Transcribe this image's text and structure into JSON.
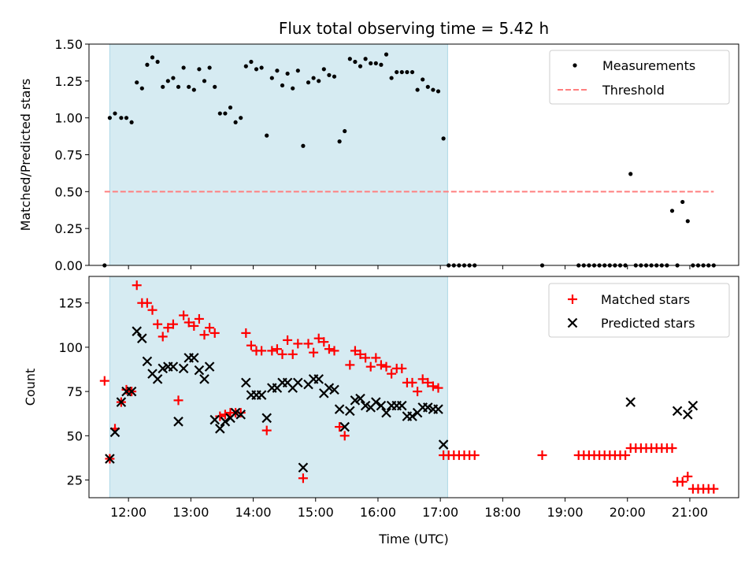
{
  "chart_data": [
    {
      "type": "scatter",
      "title": "Flux total observing time = 5.42 h",
      "xlabel": "",
      "ylabel": "Matched/Predicted stars",
      "xlim": [
        "11:22",
        "21:47"
      ],
      "ylim": [
        0,
        1.5
      ],
      "yticks": [
        "0.00",
        "0.25",
        "0.50",
        "0.75",
        "1.00",
        "1.25",
        "1.50"
      ],
      "xticks": [
        "12:00",
        "13:00",
        "14:00",
        "15:00",
        "16:00",
        "17:00",
        "18:00",
        "19:00",
        "20:00",
        "21:00"
      ],
      "grid": false,
      "legend": "top-right",
      "shaded_interval": [
        "11:42",
        "17:07"
      ],
      "shaded_color": "#add8e6",
      "series": [
        {
          "name": "Measurements",
          "marker": "dot",
          "color": "#000000",
          "x": [
            "11:37",
            "11:42",
            "11:47",
            "11:53",
            "11:58",
            "12:03",
            "12:08",
            "12:13",
            "12:18",
            "12:23",
            "12:28",
            "12:33",
            "12:38",
            "12:43",
            "12:48",
            "12:53",
            "12:58",
            "13:03",
            "13:08",
            "13:13",
            "13:18",
            "13:23",
            "13:28",
            "13:33",
            "13:38",
            "13:43",
            "13:48",
            "13:53",
            "13:58",
            "14:03",
            "14:08",
            "14:13",
            "14:18",
            "14:23",
            "14:28",
            "14:33",
            "14:38",
            "14:43",
            "14:48",
            "14:53",
            "14:58",
            "15:03",
            "15:08",
            "15:13",
            "15:18",
            "15:23",
            "15:28",
            "15:33",
            "15:38",
            "15:43",
            "15:48",
            "15:53",
            "15:58",
            "16:03",
            "16:08",
            "16:13",
            "16:18",
            "16:23",
            "16:28",
            "16:33",
            "16:38",
            "16:43",
            "16:48",
            "16:53",
            "16:58",
            "17:03",
            "17:08",
            "17:13",
            "17:18",
            "17:23",
            "17:28",
            "17:33",
            "18:38",
            "19:13",
            "19:18",
            "19:23",
            "19:28",
            "19:33",
            "19:38",
            "19:43",
            "19:48",
            "19:53",
            "19:58",
            "20:03",
            "20:08",
            "20:13",
            "20:18",
            "20:23",
            "20:28",
            "20:33",
            "20:38",
            "20:43",
            "20:48",
            "20:53",
            "20:58",
            "21:03",
            "21:08",
            "21:13",
            "21:18",
            "21:23"
          ],
          "y": [
            0.0,
            1.0,
            1.03,
            1.0,
            1.0,
            0.97,
            1.24,
            1.2,
            1.36,
            1.41,
            1.38,
            1.21,
            1.25,
            1.27,
            1.21,
            1.34,
            1.21,
            1.19,
            1.33,
            1.25,
            1.34,
            1.21,
            1.03,
            1.03,
            1.07,
            0.97,
            1.0,
            1.35,
            1.38,
            1.33,
            1.34,
            0.88,
            1.27,
            1.32,
            1.22,
            1.3,
            1.2,
            1.32,
            0.81,
            1.24,
            1.27,
            1.25,
            1.33,
            1.29,
            1.28,
            0.84,
            0.91,
            1.4,
            1.38,
            1.35,
            1.4,
            1.37,
            1.37,
            1.36,
            1.43,
            1.27,
            1.31,
            1.31,
            1.31,
            1.31,
            1.19,
            1.26,
            1.21,
            1.19,
            1.18,
            0.86,
            0.0,
            0.0,
            0.0,
            0.0,
            0.0,
            0.0,
            0.0,
            0.0,
            0.0,
            0.0,
            0.0,
            0.0,
            0.0,
            0.0,
            0.0,
            0.0,
            0.0,
            0.62,
            0.0,
            0.0,
            0.0,
            0.0,
            0.0,
            0.0,
            0.0,
            0.37,
            0.0,
            0.43,
            0.3,
            0.0,
            0.0,
            0.0,
            0.0,
            0.0
          ]
        },
        {
          "name": "Threshold",
          "marker": "dashed-line",
          "color": "#ff7f7f",
          "x": [
            "11:37",
            "21:23"
          ],
          "y": [
            0.5,
            0.5
          ]
        }
      ]
    },
    {
      "type": "scatter",
      "title": "",
      "xlabel": "Time (UTC)",
      "ylabel": "Count",
      "xlim": [
        "11:22",
        "21:47"
      ],
      "ylim": [
        15,
        140
      ],
      "yticks": [
        "25",
        "50",
        "75",
        "100",
        "125"
      ],
      "xticks": [
        "12:00",
        "13:00",
        "14:00",
        "15:00",
        "16:00",
        "17:00",
        "18:00",
        "19:00",
        "20:00",
        "21:00"
      ],
      "grid": false,
      "legend": "top-right",
      "shaded_interval": [
        "11:42",
        "17:07"
      ],
      "shaded_color": "#add8e6",
      "series": [
        {
          "name": "Matched stars",
          "marker": "plus",
          "color": "#ff0000",
          "x": [
            "11:37",
            "11:42",
            "11:47",
            "11:53",
            "11:58",
            "12:03",
            "12:08",
            "12:13",
            "12:18",
            "12:23",
            "12:28",
            "12:33",
            "12:38",
            "12:43",
            "12:48",
            "12:53",
            "12:58",
            "13:03",
            "13:08",
            "13:13",
            "13:18",
            "13:23",
            "13:28",
            "13:33",
            "13:38",
            "13:43",
            "13:48",
            "13:53",
            "13:58",
            "14:03",
            "14:08",
            "14:13",
            "14:18",
            "14:23",
            "14:28",
            "14:33",
            "14:38",
            "14:43",
            "14:48",
            "14:53",
            "14:58",
            "15:03",
            "15:08",
            "15:13",
            "15:18",
            "15:23",
            "15:28",
            "15:33",
            "15:38",
            "15:43",
            "15:48",
            "15:53",
            "15:58",
            "16:03",
            "16:08",
            "16:13",
            "16:18",
            "16:23",
            "16:28",
            "16:33",
            "16:38",
            "16:43",
            "16:48",
            "16:53",
            "16:58",
            "17:03",
            "17:08",
            "17:13",
            "17:18",
            "17:23",
            "17:28",
            "17:33",
            "18:38",
            "19:13",
            "19:18",
            "19:23",
            "19:28",
            "19:33",
            "19:38",
            "19:43",
            "19:48",
            "19:53",
            "19:58",
            "20:03",
            "20:08",
            "20:13",
            "20:18",
            "20:23",
            "20:28",
            "20:33",
            "20:38",
            "20:43",
            "20:48",
            "20:53",
            "20:58",
            "21:03",
            "21:08",
            "21:13",
            "21:18",
            "21:23"
          ],
          "y": [
            81,
            37,
            54,
            69,
            76,
            75,
            135,
            125,
            125,
            121,
            113,
            106,
            111,
            113,
            70,
            118,
            114,
            112,
            116,
            107,
            111,
            108,
            61,
            62,
            63,
            63,
            63,
            108,
            101,
            98,
            98,
            53,
            98,
            99,
            96,
            104,
            96,
            102,
            26,
            102,
            97,
            105,
            103,
            99,
            98,
            55,
            50,
            90,
            98,
            96,
            94,
            89,
            94,
            90,
            89,
            85,
            88,
            88,
            80,
            80,
            75,
            82,
            80,
            78,
            77,
            39,
            39,
            39,
            39,
            39,
            39,
            39,
            39,
            39,
            39,
            39,
            39,
            39,
            39,
            39,
            39,
            39,
            39,
            43,
            43,
            43,
            43,
            43,
            43,
            43,
            43,
            43,
            24,
            24,
            27,
            20,
            20,
            20,
            20,
            20
          ]
        },
        {
          "name": "Predicted stars",
          "marker": "x",
          "color": "#000000",
          "x": [
            "11:42",
            "11:47",
            "11:53",
            "11:58",
            "12:03",
            "12:08",
            "12:13",
            "12:18",
            "12:23",
            "12:28",
            "12:33",
            "12:38",
            "12:43",
            "12:48",
            "12:53",
            "12:58",
            "13:03",
            "13:08",
            "13:13",
            "13:18",
            "13:23",
            "13:28",
            "13:33",
            "13:38",
            "13:43",
            "13:48",
            "13:53",
            "13:58",
            "14:03",
            "14:08",
            "14:13",
            "14:18",
            "14:23",
            "14:28",
            "14:33",
            "14:38",
            "14:43",
            "14:48",
            "14:53",
            "14:58",
            "15:03",
            "15:08",
            "15:13",
            "15:18",
            "15:23",
            "15:28",
            "15:33",
            "15:38",
            "15:43",
            "15:48",
            "15:53",
            "15:58",
            "16:03",
            "16:08",
            "16:13",
            "16:18",
            "16:23",
            "16:28",
            "16:33",
            "16:38",
            "16:43",
            "16:48",
            "16:53",
            "16:58",
            "17:03",
            "20:03",
            "20:48",
            "20:58",
            "21:03"
          ],
          "y": [
            37,
            52,
            69,
            75,
            75,
            109,
            105,
            92,
            85,
            82,
            88,
            89,
            89,
            58,
            88,
            94,
            94,
            87,
            82,
            89,
            59,
            54,
            58,
            60,
            63,
            62,
            80,
            73,
            73,
            73,
            60,
            77,
            77,
            80,
            80,
            77,
            80,
            32,
            79,
            82,
            82,
            74,
            77,
            76,
            65,
            55,
            64,
            70,
            71,
            67,
            66,
            69,
            67,
            63,
            67,
            67,
            67,
            61,
            61,
            63,
            66,
            66,
            65,
            65,
            45,
            69,
            64,
            62,
            67
          ]
        }
      ]
    }
  ]
}
